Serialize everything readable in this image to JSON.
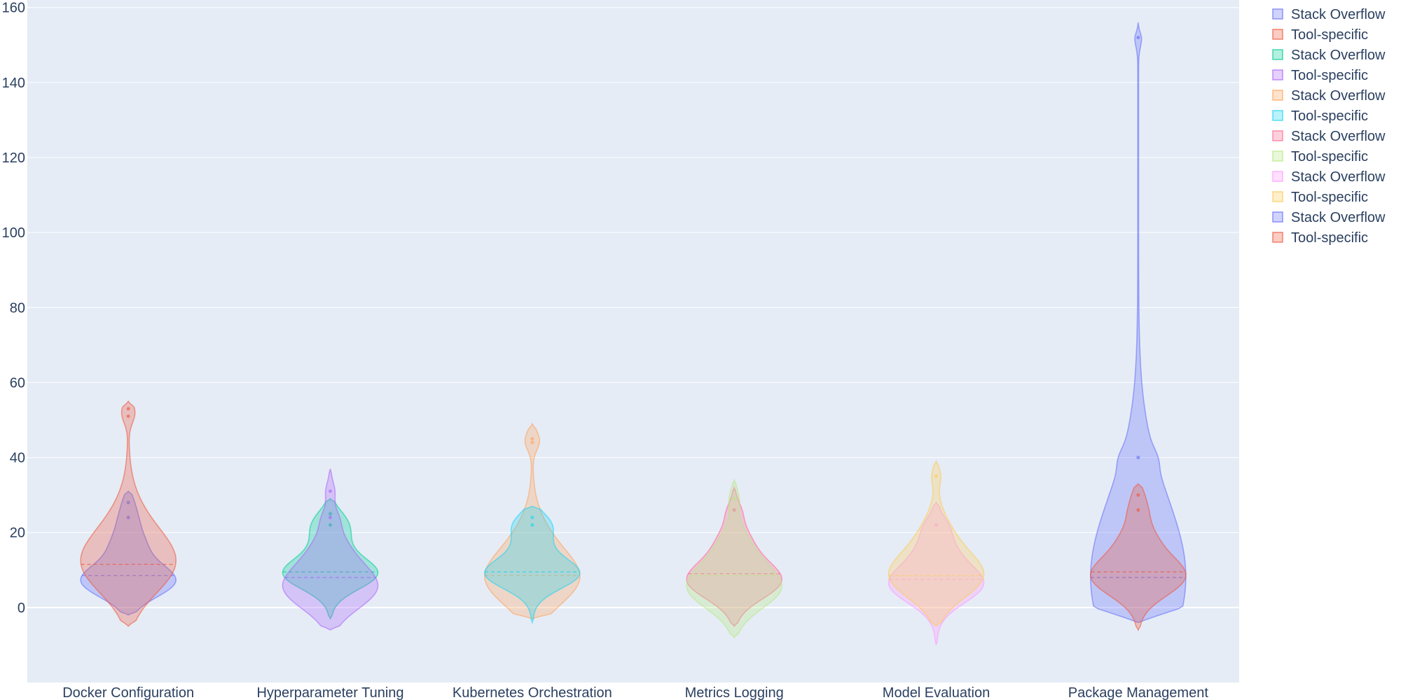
{
  "chart_data": {
    "type": "violin",
    "title": "",
    "xlabel": "",
    "ylabel": "",
    "ylim": [
      -20,
      162
    ],
    "yticks": [
      0,
      20,
      40,
      60,
      80,
      100,
      120,
      140,
      160
    ],
    "grid": true,
    "legend_position": "right",
    "categories": [
      "Docker Configuration",
      "Hyperparameter Tuning",
      "Kubernetes Orchestration",
      "Metrics Logging",
      "Model Evaluation",
      "Package Management"
    ],
    "series": [
      {
        "name": "Stack Overflow",
        "category": "Docker Configuration",
        "color": "#636efa",
        "min": -2,
        "max": 31,
        "median": 8.5,
        "mode": 7,
        "outliers": [
          24,
          28
        ]
      },
      {
        "name": "Tool-specific",
        "category": "Docker Configuration",
        "color": "#ef553b",
        "min": -5,
        "max": 55,
        "median": 11.5,
        "mode": 11,
        "outliers": [
          51,
          53
        ]
      },
      {
        "name": "Stack Overflow",
        "category": "Hyperparameter Tuning",
        "color": "#00cc96",
        "min": -3,
        "max": 29,
        "median": 9.5,
        "mode": 9,
        "outliers": [
          22,
          25
        ]
      },
      {
        "name": "Tool-specific",
        "category": "Hyperparameter Tuning",
        "color": "#ab63fa",
        "min": -6,
        "max": 37,
        "median": 8,
        "mode": 5,
        "outliers": [
          24,
          31
        ]
      },
      {
        "name": "Stack Overflow",
        "category": "Kubernetes Orchestration",
        "color": "#ffa15a",
        "min": -3,
        "max": 49,
        "median": 8.5,
        "mode": 7,
        "outliers": [
          44,
          45
        ]
      },
      {
        "name": "Tool-specific",
        "category": "Kubernetes Orchestration",
        "color": "#19d3f3",
        "min": -4,
        "max": 27,
        "median": 9.5,
        "mode": 9,
        "outliers": [
          22,
          24
        ]
      },
      {
        "name": "Stack Overflow",
        "category": "Metrics Logging",
        "color": "#ff6692",
        "min": -5,
        "max": 32,
        "median": 9,
        "mode": 7,
        "outliers": [
          26
        ]
      },
      {
        "name": "Tool-specific",
        "category": "Metrics Logging",
        "color": "#b6e880",
        "min": -8,
        "max": 34,
        "median": 8.5,
        "mode": 5,
        "outliers": [
          29
        ]
      },
      {
        "name": "Stack Overflow",
        "category": "Model Evaluation",
        "color": "#ff97ff",
        "min": -10,
        "max": 28,
        "median": 7.5,
        "mode": 6,
        "outliers": [
          22
        ]
      },
      {
        "name": "Tool-specific",
        "category": "Model Evaluation",
        "color": "#fecb52",
        "min": -5,
        "max": 39,
        "median": 8.5,
        "mode": 8,
        "outliers": [
          35
        ]
      },
      {
        "name": "Stack Overflow",
        "category": "Package Management",
        "color": "#636efa",
        "min": -4,
        "max": 156,
        "median": 8,
        "mode": 6,
        "outliers": [
          40,
          152
        ]
      },
      {
        "name": "Tool-specific",
        "category": "Package Management",
        "color": "#ef553b",
        "min": -6,
        "max": 33,
        "median": 9.5,
        "mode": 8,
        "outliers": [
          26,
          30
        ]
      }
    ]
  }
}
